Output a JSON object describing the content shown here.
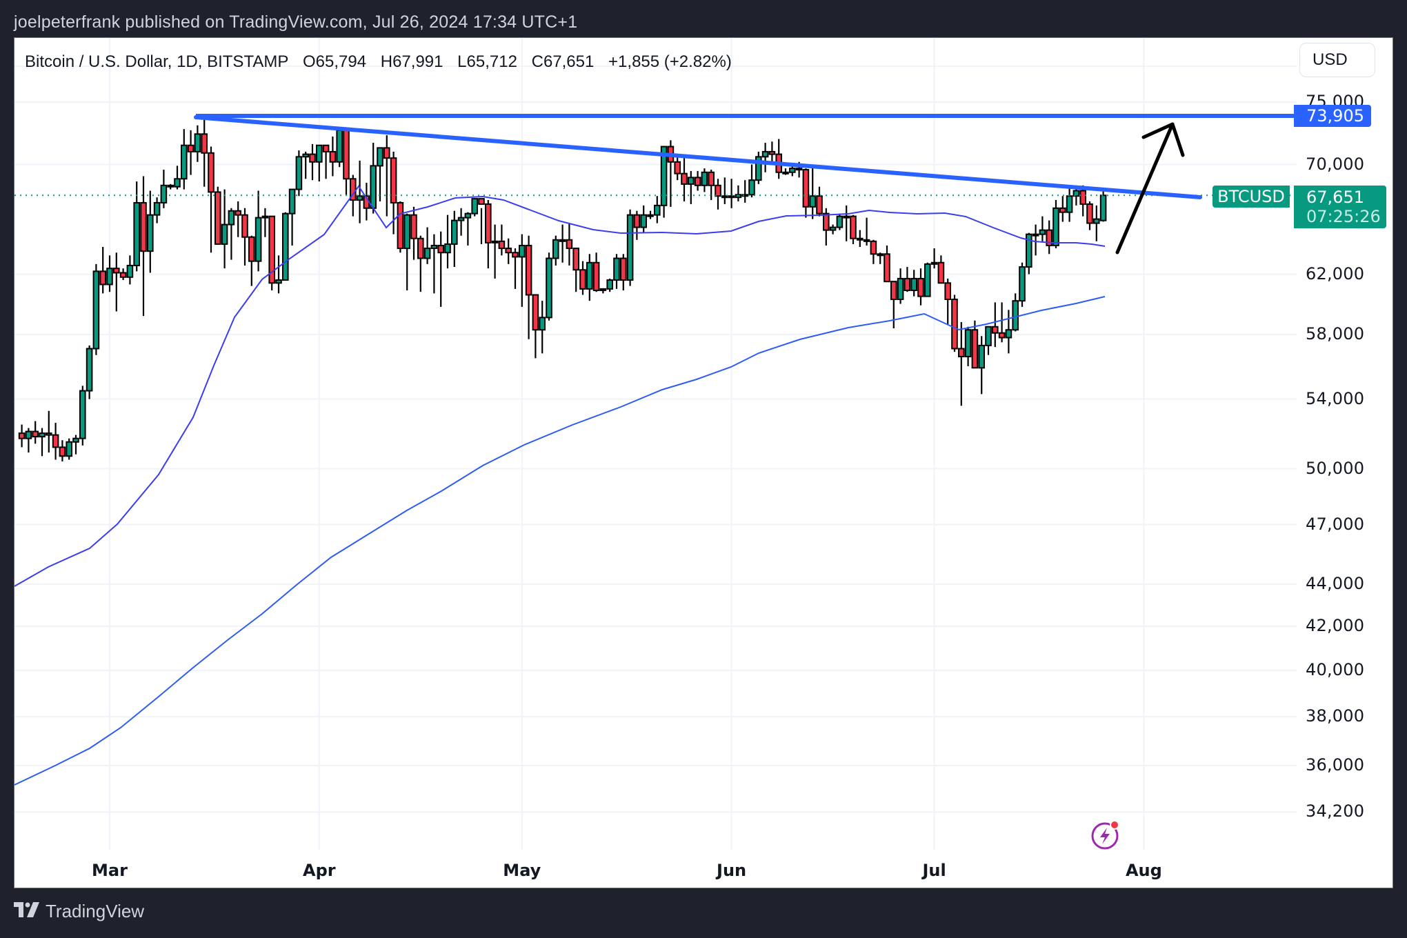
{
  "header": {
    "publish_line": "joelpeterfrank published on TradingView.com, Jul 26, 2024 17:34 UTC+1"
  },
  "legend": {
    "symbol": "Bitcoin / U.S. Dollar, 1D, BITSTAMP",
    "open": "O65,794",
    "high": "H67,991",
    "low": "L65,712",
    "close": "C67,651",
    "change": "+1,855 (+2.82%)"
  },
  "currency_button": "USD",
  "price_tags": {
    "resistance_level": "73,905",
    "symbol": "BTCUSD",
    "last_price": "67,651",
    "countdown": "07:25:26"
  },
  "footer": {
    "brand": "TradingView"
  },
  "colors": {
    "up": "#089981",
    "down": "#f23645",
    "trendline": "#2962ff",
    "ma_line": "#3c3cf0",
    "ma_long": "#2d5bf5",
    "background_frame": "#1f222d",
    "alert_icon": "#9c27b0"
  },
  "chart_data": {
    "type": "candlestick",
    "title": "Bitcoin / U.S. Dollar, 1D, BITSTAMP",
    "scale": "log",
    "ylabel": "USD",
    "ylim": [
      33000,
      77000
    ],
    "y_ticks": [
      "75,000",
      "70,000",
      "62,000",
      "58,000",
      "54,000",
      "50,000",
      "47,000",
      "44,000",
      "42,000",
      "40,000",
      "38,000",
      "36,000",
      "34,200"
    ],
    "x_ticks": [
      "Mar",
      "Apr",
      "May",
      "Jun",
      "Jul",
      "Aug"
    ],
    "grid": true,
    "last": {
      "open": 65794,
      "high": 67991,
      "low": 65712,
      "close": 67651,
      "change": 1855,
      "change_pct": 2.82
    },
    "candles_start_date": "2024-02-20",
    "candles": [
      [
        51800,
        52400,
        50800,
        52000
      ],
      [
        52000,
        52500,
        51200,
        51700
      ],
      [
        51700,
        52300,
        50900,
        52100
      ],
      [
        52100,
        52700,
        51400,
        51800
      ],
      [
        51800,
        52300,
        50700,
        52000
      ],
      [
        52000,
        53300,
        50900,
        51900
      ],
      [
        51900,
        52600,
        50500,
        51200
      ],
      [
        51200,
        51600,
        50400,
        50700
      ],
      [
        50700,
        51700,
        50500,
        51500
      ],
      [
        51500,
        51900,
        50800,
        51700
      ],
      [
        51700,
        54800,
        51300,
        54500
      ],
      [
        54500,
        57300,
        54000,
        57100
      ],
      [
        57100,
        62700,
        56700,
        62200
      ],
      [
        62200,
        63900,
        60700,
        61300
      ],
      [
        61300,
        63300,
        60800,
        62400
      ],
      [
        62400,
        63500,
        59500,
        62100
      ],
      [
        62100,
        62400,
        61600,
        61800
      ],
      [
        61800,
        63300,
        61300,
        62600
      ],
      [
        62600,
        68700,
        62200,
        67100
      ],
      [
        67100,
        69100,
        59200,
        63600
      ],
      [
        63600,
        68000,
        62100,
        66200
      ],
      [
        66200,
        67500,
        65600,
        67100
      ],
      [
        67100,
        69600,
        66700,
        68400
      ],
      [
        68400,
        68500,
        68100,
        68300
      ],
      [
        68300,
        69900,
        68100,
        68900
      ],
      [
        68900,
        72800,
        68100,
        71500
      ],
      [
        71500,
        72700,
        69200,
        71000
      ],
      [
        71000,
        73100,
        70200,
        72400
      ],
      [
        72400,
        73800,
        68300,
        70900
      ],
      [
        70900,
        71400,
        63500,
        67900
      ],
      [
        67900,
        68300,
        64800,
        64100
      ],
      [
        64100,
        68100,
        62400,
        65500
      ],
      [
        65500,
        66700,
        63000,
        66500
      ],
      [
        66500,
        67200,
        64600,
        66200
      ],
      [
        66200,
        66700,
        62600,
        64600
      ],
      [
        64600,
        64700,
        61200,
        62900
      ],
      [
        62900,
        68000,
        62200,
        66000
      ],
      [
        66000,
        66700,
        64600,
        66100
      ],
      [
        66100,
        66100,
        60900,
        61400
      ],
      [
        61400,
        63300,
        60700,
        61600
      ],
      [
        61600,
        66400,
        61600,
        66300
      ],
      [
        66300,
        67300,
        64000,
        68100
      ],
      [
        68100,
        71100,
        67600,
        70600
      ],
      [
        70600,
        71000,
        68900,
        70800
      ],
      [
        70800,
        71600,
        68800,
        70200
      ],
      [
        70200,
        71500,
        68700,
        71500
      ],
      [
        71500,
        71300,
        68900,
        71000
      ],
      [
        71000,
        72200,
        69100,
        70200
      ],
      [
        70200,
        72800,
        69800,
        72700
      ],
      [
        72700,
        72300,
        67700,
        68900
      ],
      [
        68900,
        69200,
        66100,
        67300
      ],
      [
        67300,
        70300,
        65600,
        67600
      ],
      [
        67600,
        68600,
        65800,
        66700
      ],
      [
        66700,
        71700,
        66300,
        69900
      ],
      [
        69900,
        71100,
        67200,
        71300
      ],
      [
        71300,
        72300,
        66100,
        70500
      ],
      [
        70500,
        71000,
        64800,
        67100
      ],
      [
        67100,
        67200,
        63500,
        63800
      ],
      [
        63800,
        66300,
        60900,
        66200
      ],
      [
        66200,
        66800,
        63000,
        64500
      ],
      [
        64500,
        64700,
        60800,
        63100
      ],
      [
        63100,
        65300,
        62700,
        63800
      ],
      [
        63800,
        64800,
        60700,
        64000
      ],
      [
        64000,
        65000,
        59800,
        63500
      ],
      [
        63500,
        66200,
        62400,
        64100
      ],
      [
        64100,
        66500,
        62500,
        65800
      ],
      [
        65800,
        66700,
        64700,
        66000
      ],
      [
        66000,
        66400,
        64000,
        66300
      ],
      [
        66300,
        67200,
        66100,
        67400
      ],
      [
        67400,
        66700,
        64100,
        67000
      ],
      [
        67000,
        67300,
        62400,
        64200
      ],
      [
        64200,
        65500,
        61700,
        64300
      ],
      [
        64300,
        65500,
        63300,
        63800
      ],
      [
        63800,
        64500,
        62700,
        63500
      ],
      [
        63500,
        63800,
        61000,
        63200
      ],
      [
        63200,
        64800,
        59800,
        64000
      ],
      [
        64000,
        64700,
        57700,
        60600
      ],
      [
        60600,
        60600,
        56500,
        58300
      ],
      [
        58300,
        60200,
        56800,
        59100
      ],
      [
        59100,
        63500,
        58900,
        63100
      ],
      [
        63100,
        64700,
        62600,
        64400
      ],
      [
        64400,
        65500,
        62800,
        64400
      ],
      [
        64400,
        65600,
        62600,
        63800
      ],
      [
        63800,
        63800,
        60800,
        62300
      ],
      [
        62300,
        62900,
        60600,
        61000
      ],
      [
        61000,
        63400,
        60200,
        62800
      ],
      [
        62800,
        63500,
        60800,
        60900
      ],
      [
        60900,
        61000,
        60700,
        61000
      ],
      [
        61000,
        61700,
        60800,
        61600
      ],
      [
        61600,
        63400,
        61000,
        63100
      ],
      [
        63100,
        63400,
        60900,
        61600
      ],
      [
        61600,
        66600,
        61200,
        66200
      ],
      [
        66200,
        66500,
        64400,
        65300
      ],
      [
        65300,
        66900,
        64900,
        66200
      ],
      [
        66200,
        66500,
        65900,
        66200
      ],
      [
        66200,
        67600,
        65600,
        66900
      ],
      [
        66900,
        71400,
        66000,
        71400
      ],
      [
        71400,
        71900,
        66800,
        70200
      ],
      [
        70200,
        70600,
        68800,
        69300
      ],
      [
        69300,
        70500,
        67200,
        68500
      ],
      [
        68500,
        69500,
        67000,
        69000
      ],
      [
        69000,
        69500,
        68000,
        68400
      ],
      [
        68400,
        69700,
        67900,
        69400
      ],
      [
        69400,
        69600,
        67300,
        68400
      ],
      [
        68400,
        68900,
        66600,
        67600
      ],
      [
        67600,
        69000,
        67000,
        67600
      ],
      [
        67600,
        68900,
        66700,
        67500
      ],
      [
        67500,
        68400,
        67200,
        67700
      ],
      [
        67700,
        68800,
        67100,
        67700
      ],
      [
        67700,
        70000,
        67500,
        68800
      ],
      [
        68800,
        71000,
        68500,
        70600
      ],
      [
        70600,
        71700,
        69400,
        71000
      ],
      [
        71000,
        71800,
        70200,
        70800
      ],
      [
        70800,
        72000,
        68900,
        69400
      ],
      [
        69400,
        69700,
        69200,
        69400
      ],
      [
        69400,
        69900,
        69100,
        69700
      ],
      [
        69700,
        70200,
        69000,
        69600
      ],
      [
        69600,
        69700,
        66000,
        66800
      ],
      [
        66800,
        70000,
        65900,
        67600
      ],
      [
        67600,
        68300,
        66100,
        66300
      ],
      [
        66300,
        66700,
        64000,
        65100
      ],
      [
        65100,
        65500,
        64800,
        65300
      ],
      [
        65300,
        66300,
        65100,
        66100
      ],
      [
        66100,
        66900,
        64300,
        66100
      ],
      [
        66100,
        66200,
        64100,
        64500
      ],
      [
        64500,
        65100,
        63900,
        64400
      ],
      [
        64400,
        66000,
        64000,
        64300
      ],
      [
        64300,
        64400,
        62700,
        63400
      ],
      [
        63400,
        63500,
        62700,
        63400
      ],
      [
        63400,
        64000,
        62000,
        61500
      ],
      [
        61500,
        61500,
        58400,
        60300
      ],
      [
        60300,
        62400,
        60000,
        61700
      ],
      [
        61700,
        62500,
        60800,
        60900
      ],
      [
        60900,
        62300,
        60500,
        61700
      ],
      [
        61700,
        62400,
        59900,
        60500
      ],
      [
        60500,
        62800,
        60500,
        62700
      ],
      [
        62700,
        63800,
        62400,
        62800
      ],
      [
        62800,
        63300,
        61500,
        61400
      ],
      [
        61400,
        61700,
        58600,
        60300
      ],
      [
        60300,
        60600,
        56900,
        57100
      ],
      [
        57100,
        58800,
        53600,
        56600
      ],
      [
        56600,
        58500,
        56000,
        58300
      ],
      [
        58300,
        58900,
        55900,
        55900
      ],
      [
        55900,
        57900,
        54300,
        57300
      ],
      [
        57300,
        58400,
        56700,
        58500
      ],
      [
        58500,
        60100,
        57200,
        58100
      ],
      [
        58100,
        60100,
        57500,
        57800
      ],
      [
        57800,
        59600,
        56800,
        58300
      ],
      [
        58300,
        60700,
        58200,
        60200
      ],
      [
        60200,
        62800,
        59800,
        62500
      ],
      [
        62500,
        64900,
        62000,
        64800
      ],
      [
        64800,
        65500,
        63300,
        64800
      ],
      [
        64800,
        66100,
        64300,
        65100
      ],
      [
        65100,
        65800,
        63400,
        64000
      ],
      [
        64000,
        67300,
        63800,
        66700
      ],
      [
        66700,
        67600,
        65700,
        66400
      ],
      [
        66400,
        68200,
        65700,
        67600
      ],
      [
        67600,
        68400,
        66900,
        68000
      ],
      [
        68000,
        68400,
        66100,
        67000
      ],
      [
        67000,
        67200,
        65100,
        65600
      ],
      [
        65600,
        66900,
        64300,
        65900
      ],
      [
        65794,
        67991,
        65712,
        67651
      ]
    ],
    "overlays": [
      {
        "name": "Resistance (horizontal)",
        "type": "hline",
        "value": 73905,
        "color": "#2962ff"
      },
      {
        "name": "Descending trendline",
        "type": "trendline",
        "from": [
          "2024-03-14",
          73905
        ],
        "to": [
          "2024-08-02",
          67900
        ],
        "color": "#2962ff"
      },
      {
        "name": "Moving average (short)",
        "type": "line",
        "color": "#3c3cf0"
      },
      {
        "name": "Moving average (long)",
        "type": "line",
        "color": "#2d5bf5"
      },
      {
        "name": "Projection arrow",
        "type": "arrow",
        "from": [
          "2024-07-28",
          63700
        ],
        "to": [
          "2024-08-03",
          73200
        ],
        "color": "#000000"
      }
    ],
    "annotations": [
      "73,905",
      "BTCUSD 67,651",
      "07:25:26"
    ]
  }
}
